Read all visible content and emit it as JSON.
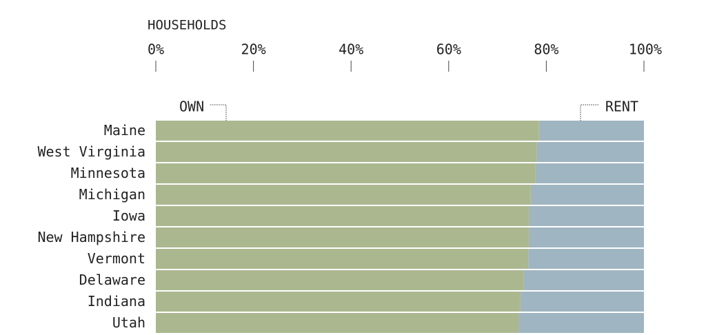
{
  "chart_data": {
    "type": "stacked-bar-horizontal",
    "axis_title": "HOUSEHOLDS",
    "categories": [
      "Maine",
      "West Virginia",
      "Minnesota",
      "Michigan",
      "Iowa",
      "New Hampshire",
      "Vermont",
      "Delaware",
      "Indiana",
      "Utah"
    ],
    "series": [
      {
        "name": "OWN",
        "color": "#abb88f",
        "values": [
          78.5,
          78.0,
          77.8,
          76.8,
          76.4,
          76.4,
          76.3,
          75.3,
          74.7,
          74.3
        ]
      },
      {
        "name": "RENT",
        "color": "#a0b5c2",
        "values": [
          21.5,
          22.0,
          22.2,
          23.2,
          23.6,
          23.6,
          23.7,
          24.7,
          25.3,
          25.7
        ]
      }
    ],
    "xlim": [
      0,
      100
    ],
    "xticks": [
      {
        "value": 0,
        "label": "0%"
      },
      {
        "value": 20,
        "label": "20%"
      },
      {
        "value": 40,
        "label": "40%"
      },
      {
        "value": 60,
        "label": "60%"
      },
      {
        "value": 80,
        "label": "80%"
      },
      {
        "value": 100,
        "label": "100%"
      }
    ]
  }
}
